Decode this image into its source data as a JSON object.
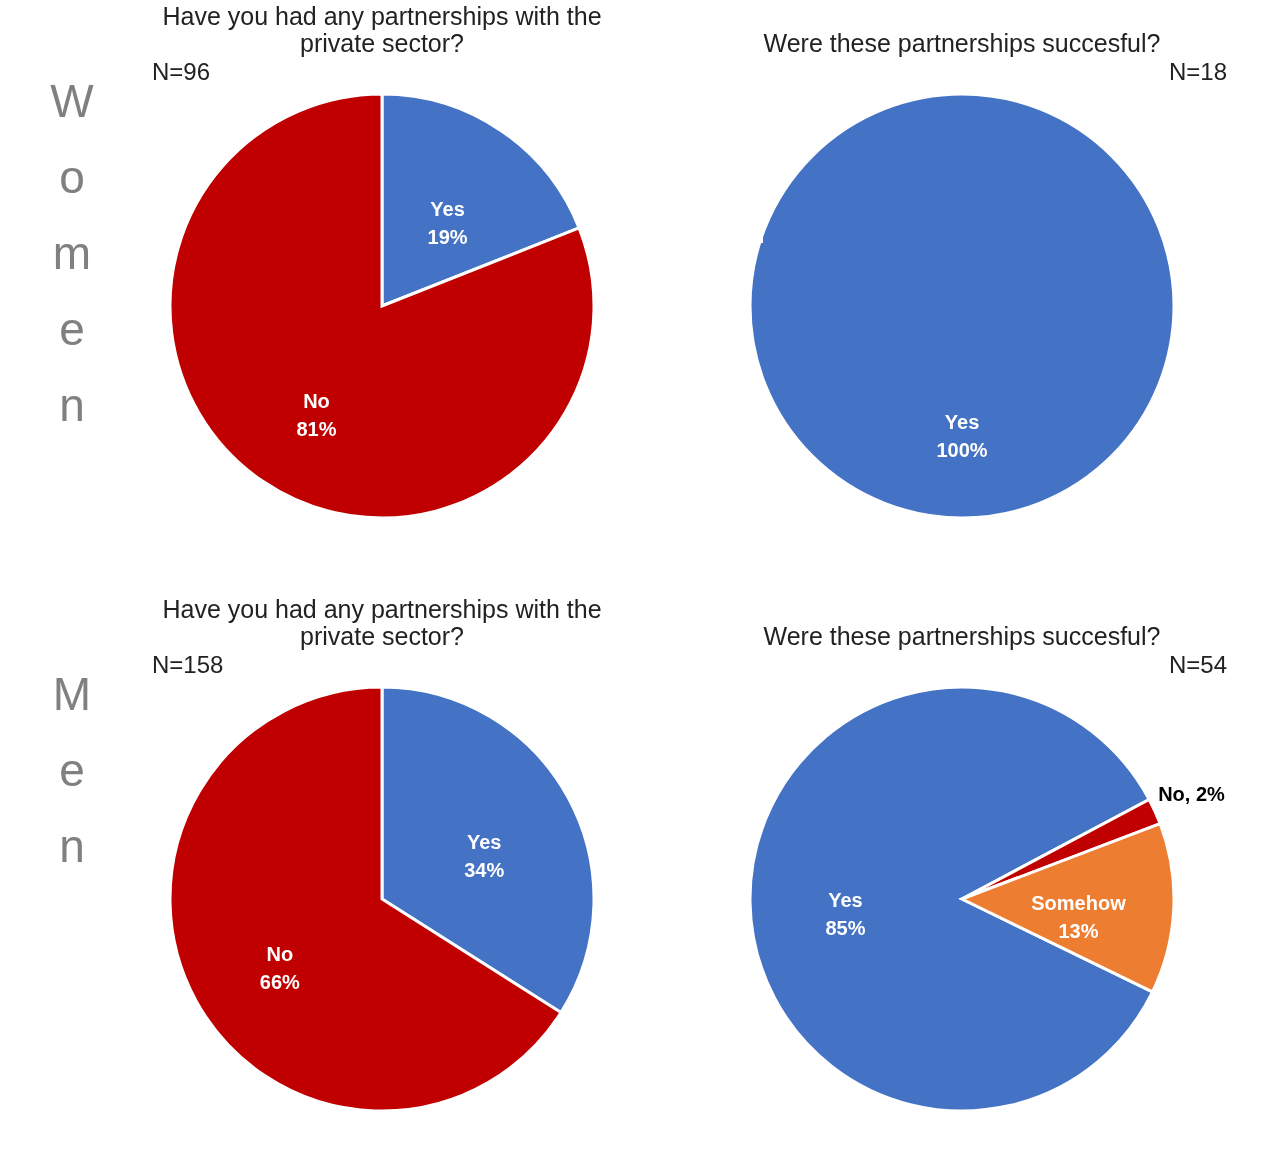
{
  "chart_data": [
    {
      "type": "pie",
      "title": "Have you had any partnerships with the private sector?",
      "categories": [
        "Yes",
        "No"
      ],
      "values": [
        19,
        81
      ],
      "colors": [
        "#4472c4",
        "#c00000"
      ],
      "value_labels": [
        "19%",
        "81%"
      ],
      "annotations": [
        "N=96",
        "Women"
      ]
    },
    {
      "type": "pie",
      "title": "Were these partnerships succesful?",
      "categories": [
        "Yes"
      ],
      "values": [
        100
      ],
      "colors": [
        "#4472c4"
      ],
      "value_labels": [
        "100%"
      ],
      "annotations": [
        "N=18"
      ]
    },
    {
      "type": "pie",
      "title": "Have you had any partnerships with the private sector?",
      "categories": [
        "Yes",
        "No"
      ],
      "values": [
        34,
        66
      ],
      "colors": [
        "#4472c4",
        "#c00000"
      ],
      "value_labels": [
        "34%",
        "66%"
      ],
      "annotations": [
        "N=158",
        "Men"
      ]
    },
    {
      "type": "pie",
      "title": "Were these partnerships succesful?",
      "categories": [
        "Yes",
        "No",
        "Somehow"
      ],
      "values": [
        85,
        2,
        13
      ],
      "colors": [
        "#4472c4",
        "#c00000",
        "#ed7d31"
      ],
      "value_labels": [
        "85%",
        "2%",
        "13%"
      ],
      "annotations": [
        "N=54"
      ]
    }
  ]
}
